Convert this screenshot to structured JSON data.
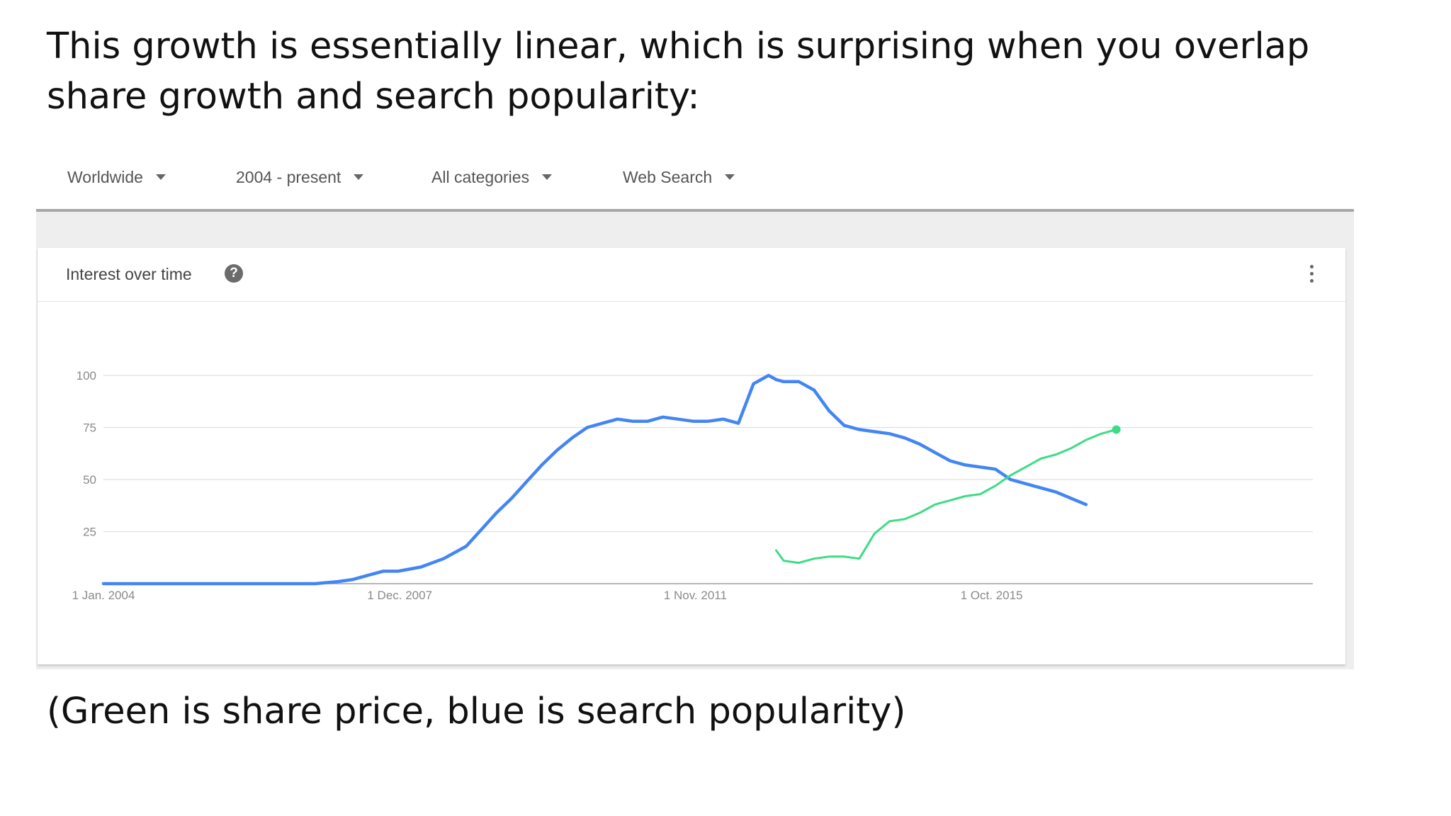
{
  "slide": {
    "headline": "This growth is essentially linear, which is surprising when you overlap share growth and search popularity:",
    "caption": "(Green is share price, blue is search popularity)"
  },
  "filters": [
    {
      "label": "Worldwide"
    },
    {
      "label": "2004 - present"
    },
    {
      "label": "All categories"
    },
    {
      "label": "Web Search"
    }
  ],
  "card": {
    "title": "Interest over time",
    "help_icon": "question-mark-icon",
    "menu_icon": "vertical-dots-icon"
  },
  "colors": {
    "search_series": "#4285f4",
    "share_series": "#3ddc84",
    "grid": "#e0e0e0",
    "axis": "#9e9e9e"
  },
  "chart_data": {
    "type": "line",
    "title": "",
    "xlabel": "",
    "ylabel": "",
    "ylim": [
      0,
      100
    ],
    "xlim": [
      2004.0,
      2020.0
    ],
    "y_ticks": [
      25,
      50,
      75,
      100
    ],
    "x_ticks": [
      {
        "x": 2004.0,
        "label": "1 Jan. 2004"
      },
      {
        "x": 2007.92,
        "label": "1 Dec. 2007"
      },
      {
        "x": 2011.83,
        "label": "1 Nov. 2011"
      },
      {
        "x": 2015.75,
        "label": "1 Oct. 2015"
      }
    ],
    "grid": true,
    "series": [
      {
        "name": "",
        "key": "search",
        "x": [
          2004.0,
          2006.8,
          2007.1,
          2007.3,
          2007.5,
          2007.7,
          2007.9,
          2008.2,
          2008.5,
          2008.8,
          2009.0,
          2009.2,
          2009.4,
          2009.6,
          2009.8,
          2010.0,
          2010.2,
          2010.4,
          2010.6,
          2010.8,
          2011.0,
          2011.2,
          2011.4,
          2011.6,
          2011.8,
          2012.0,
          2012.2,
          2012.4,
          2012.6,
          2012.8,
          2012.9,
          2013.0,
          2013.2,
          2013.4,
          2013.6,
          2013.8,
          2014.0,
          2014.2,
          2014.4,
          2014.6,
          2014.8,
          2015.0,
          2015.2,
          2015.4,
          2015.6,
          2015.8,
          2016.0,
          2016.3,
          2016.6,
          2017.0
        ],
        "values": [
          0,
          0,
          1,
          2,
          4,
          6,
          6,
          8,
          12,
          18,
          26,
          34,
          41,
          49,
          57,
          64,
          70,
          75,
          77,
          79,
          78,
          78,
          80,
          79,
          78,
          78,
          79,
          77,
          96,
          100,
          98,
          97,
          97,
          93,
          83,
          76,
          74,
          73,
          72,
          70,
          67,
          63,
          59,
          57,
          56,
          55,
          50,
          47,
          44,
          38
        ]
      },
      {
        "name": "",
        "key": "share",
        "x": [
          2012.9,
          2013.0,
          2013.2,
          2013.4,
          2013.6,
          2013.8,
          2014.0,
          2014.2,
          2014.4,
          2014.6,
          2014.8,
          2015.0,
          2015.2,
          2015.4,
          2015.6,
          2015.8,
          2016.0,
          2016.2,
          2016.4,
          2016.6,
          2016.8,
          2017.0,
          2017.2,
          2017.4
        ],
        "values": [
          16,
          11,
          10,
          12,
          13,
          13,
          12,
          24,
          30,
          31,
          34,
          38,
          40,
          42,
          43,
          47,
          52,
          56,
          60,
          62,
          65,
          69,
          72,
          74
        ]
      }
    ]
  }
}
